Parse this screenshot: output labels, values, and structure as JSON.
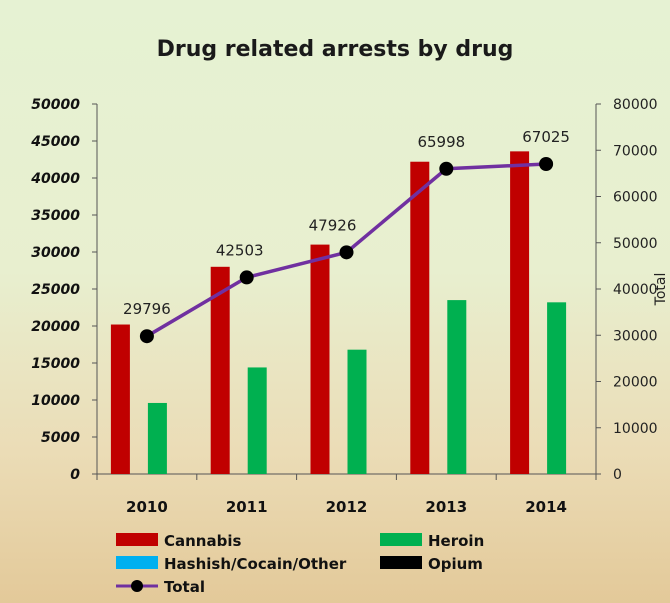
{
  "chart_data": {
    "type": "bar",
    "title": "Drug related arrests by drug",
    "categories": [
      "2010",
      "2011",
      "2012",
      "2013",
      "2014"
    ],
    "series": [
      {
        "name": "Cannabis",
        "type": "bar",
        "axis": "left",
        "color": "#c00000",
        "values": [
          20200,
          28000,
          31000,
          42200,
          43600
        ]
      },
      {
        "name": "Heroin",
        "type": "bar",
        "axis": "left",
        "color": "#00b050",
        "values": [
          9600,
          14400,
          16800,
          23500,
          23200
        ]
      },
      {
        "name": "Hashish/Cocain/Other",
        "type": "bar",
        "axis": "left",
        "color": "#00b0f0",
        "values": [
          0,
          0,
          0,
          0,
          0
        ]
      },
      {
        "name": "Opium",
        "type": "bar",
        "axis": "left",
        "color": "#000000",
        "values": [
          0,
          0,
          0,
          0,
          0
        ]
      },
      {
        "name": "Total",
        "type": "line",
        "axis": "right",
        "color": "#7030a0",
        "marker_color": "#000000",
        "values": [
          29796,
          42503,
          47926,
          65998,
          67025
        ]
      }
    ],
    "left_axis": {
      "ylim": [
        0,
        50000
      ],
      "ticks": [
        "0",
        "5000",
        "10000",
        "15000",
        "20000",
        "25000",
        "30000",
        "35000",
        "40000",
        "45000",
        "50000"
      ]
    },
    "right_axis": {
      "label": "Total",
      "ylim": [
        0,
        80000
      ],
      "ticks": [
        "0",
        "10000",
        "20000",
        "30000",
        "40000",
        "50000",
        "60000",
        "70000",
        "80000"
      ]
    },
    "data_labels": [
      "29796",
      "42503",
      "47926",
      "65998",
      "67025"
    ],
    "legend": {
      "placement": "bottom"
    },
    "grid": false
  }
}
